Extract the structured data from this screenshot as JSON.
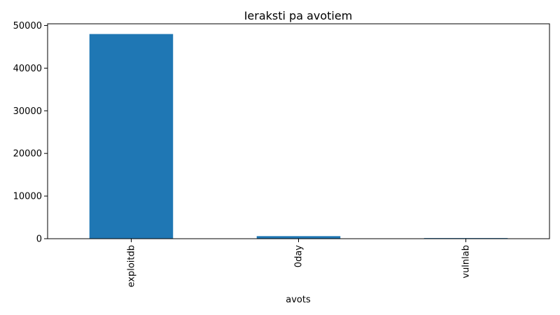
{
  "chart_data": {
    "type": "bar",
    "title": "Ieraksti pa avotiem",
    "xlabel": "avots",
    "ylabel": "",
    "categories": [
      "exploitdb",
      "0day",
      "vulnlab"
    ],
    "values": [
      48000,
      600,
      150
    ],
    "ylim": [
      0,
      50400
    ],
    "yticks": [
      0,
      10000,
      20000,
      30000,
      40000,
      50000
    ],
    "grid": false,
    "bar_color": "#1f77b4"
  }
}
